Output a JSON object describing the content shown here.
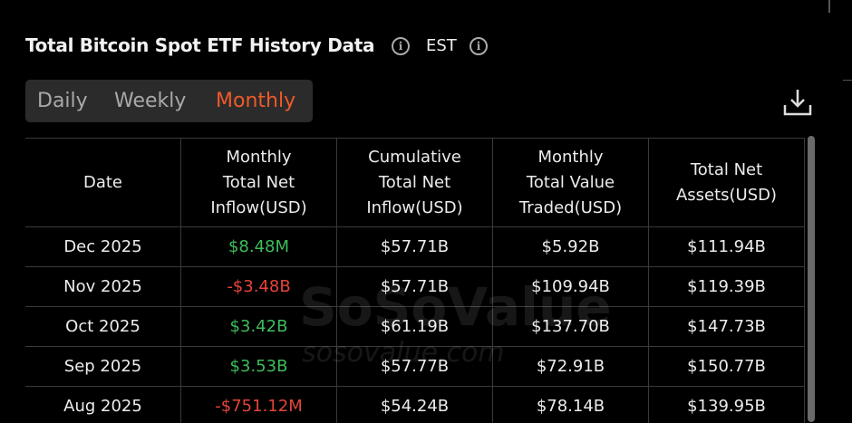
{
  "header": {
    "title": "Total Bitcoin Spot ETF History Data",
    "timezone": "EST"
  },
  "tabs": [
    "Daily",
    "Weekly",
    "Monthly"
  ],
  "active_tab": 2,
  "watermark": {
    "brand": "SoSoValue",
    "site": "sosovalue.com"
  },
  "table": {
    "columns": [
      "Date",
      "Monthly Total Net Inflow(USD)",
      "Cumulative Total Net Inflow(USD)",
      "Monthly Total Value Traded(USD)",
      "Total Net Assets(USD)"
    ],
    "rows": [
      [
        "Dec 2025",
        "$8.48M",
        "$57.71B",
        "$5.92B",
        "$111.94B"
      ],
      [
        "Nov 2025",
        "-$3.48B",
        "$57.71B",
        "$109.94B",
        "$119.39B"
      ],
      [
        "Oct 2025",
        "$3.42B",
        "$61.19B",
        "$137.70B",
        "$147.73B"
      ],
      [
        "Sep 2025",
        "$3.53B",
        "$57.77B",
        "$72.91B",
        "$150.77B"
      ],
      [
        "Aug 2025",
        "-$751.12M",
        "$54.24B",
        "$78.14B",
        "$139.95B"
      ]
    ]
  }
}
